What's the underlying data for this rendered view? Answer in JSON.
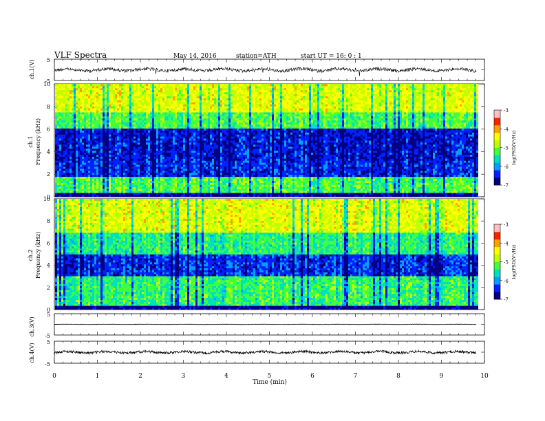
{
  "header": {
    "title": "VLF  Spectra",
    "date": "May 14, 2016",
    "station": "station=ATH",
    "start": "start  UT  =   16: 0  : 1"
  },
  "colorbar": {
    "label": "log(PSD(V²/Hz)",
    "ticks": [
      "-3",
      "-4",
      "-5",
      "-6",
      "-7"
    ],
    "colors": [
      "#000080",
      "#0020ff",
      "#00a0ff",
      "#00e0c0",
      "#40ff40",
      "#c0ff00",
      "#ffff00",
      "#ffa000",
      "#ff2000",
      "#ffc0c0",
      "#ffffff"
    ]
  },
  "chart_data": [
    {
      "type": "line",
      "panel": "ch1",
      "ylabel": "ch.1(V)",
      "ylim": [
        -5,
        5
      ],
      "yticks": [
        "5",
        "-5"
      ]
    },
    {
      "type": "heatmap",
      "panel": "ch1-spectrogram",
      "ylabel": "ch.1\nFrequency  (kHz)",
      "ylim": [
        0,
        10
      ],
      "yticks": [
        "10",
        "8",
        "6",
        "4",
        "2",
        "0"
      ],
      "clim": [
        -7,
        -3
      ]
    },
    {
      "type": "heatmap",
      "panel": "ch2-spectrogram",
      "ylabel": "ch.2\nFrequency  (kHz)",
      "ylim": [
        0,
        10
      ],
      "yticks": [
        "10",
        "8",
        "6",
        "4",
        "2",
        "0"
      ],
      "clim": [
        -7,
        -3
      ]
    },
    {
      "type": "line",
      "panel": "ch3",
      "ylabel": "ch.3(V)",
      "ylim": [
        -5,
        5
      ],
      "yticks": [
        "5",
        "-5"
      ]
    },
    {
      "type": "line",
      "panel": "ch4",
      "ylabel": "ch.4(V)",
      "ylim": [
        -5,
        5
      ],
      "yticks": [
        "5",
        "-5"
      ]
    }
  ],
  "xaxis": {
    "label": "Time  (min)",
    "xlim": [
      0,
      10
    ],
    "ticks": [
      "0",
      "1",
      "2",
      "3",
      "4",
      "5",
      "6",
      "7",
      "8",
      "9",
      "10"
    ]
  }
}
